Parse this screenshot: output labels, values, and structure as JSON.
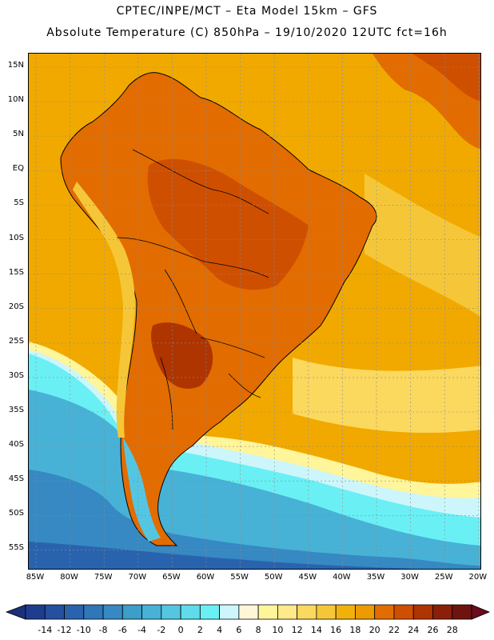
{
  "header": {
    "title_line1": "CPTEC/INPE/MCT –  Eta Model 15km – GFS",
    "title_line2": "Absolute Temperature (C) 850hPa – 19/10/2020 12UTC fct=16h"
  },
  "map": {
    "lat_labels": [
      "15N",
      "10N",
      "5N",
      "EQ",
      "5S",
      "10S",
      "15S",
      "20S",
      "25S",
      "30S",
      "35S",
      "40S",
      "45S",
      "50S",
      "55S"
    ],
    "lon_labels": [
      "85W",
      "80W",
      "75W",
      "70W",
      "65W",
      "60W",
      "55W",
      "50W",
      "45W",
      "40W",
      "35W",
      "30W",
      "25W",
      "20W"
    ],
    "grid_lines": true,
    "background_color": "#f1a900"
  },
  "colorbar": {
    "labels": [
      "-14",
      "-12",
      "-10",
      "-8",
      "-6",
      "-4",
      "-2",
      "0",
      "2",
      "4",
      "6",
      "8",
      "10",
      "12",
      "14",
      "16",
      "18",
      "20",
      "22",
      "24",
      "26",
      "28"
    ],
    "colors": [
      "#1e3d8f",
      "#24509f",
      "#2a63ad",
      "#2f77b8",
      "#3689c3",
      "#3c9ec9",
      "#47b2d6",
      "#55c6e2",
      "#5fdbeb",
      "#6af0f4",
      "#ccf6fb",
      "#fff6d8",
      "#fff59a",
      "#ffe98a",
      "#fbd85e",
      "#f5c738",
      "#f1b10c",
      "#ec9b00",
      "#e26c00",
      "#cf4f00",
      "#ae3400",
      "#8c1f0a",
      "#6d140e"
    ],
    "extend_low_color": "#1c2f7a",
    "extend_high_color": "#6b0b1f"
  }
}
